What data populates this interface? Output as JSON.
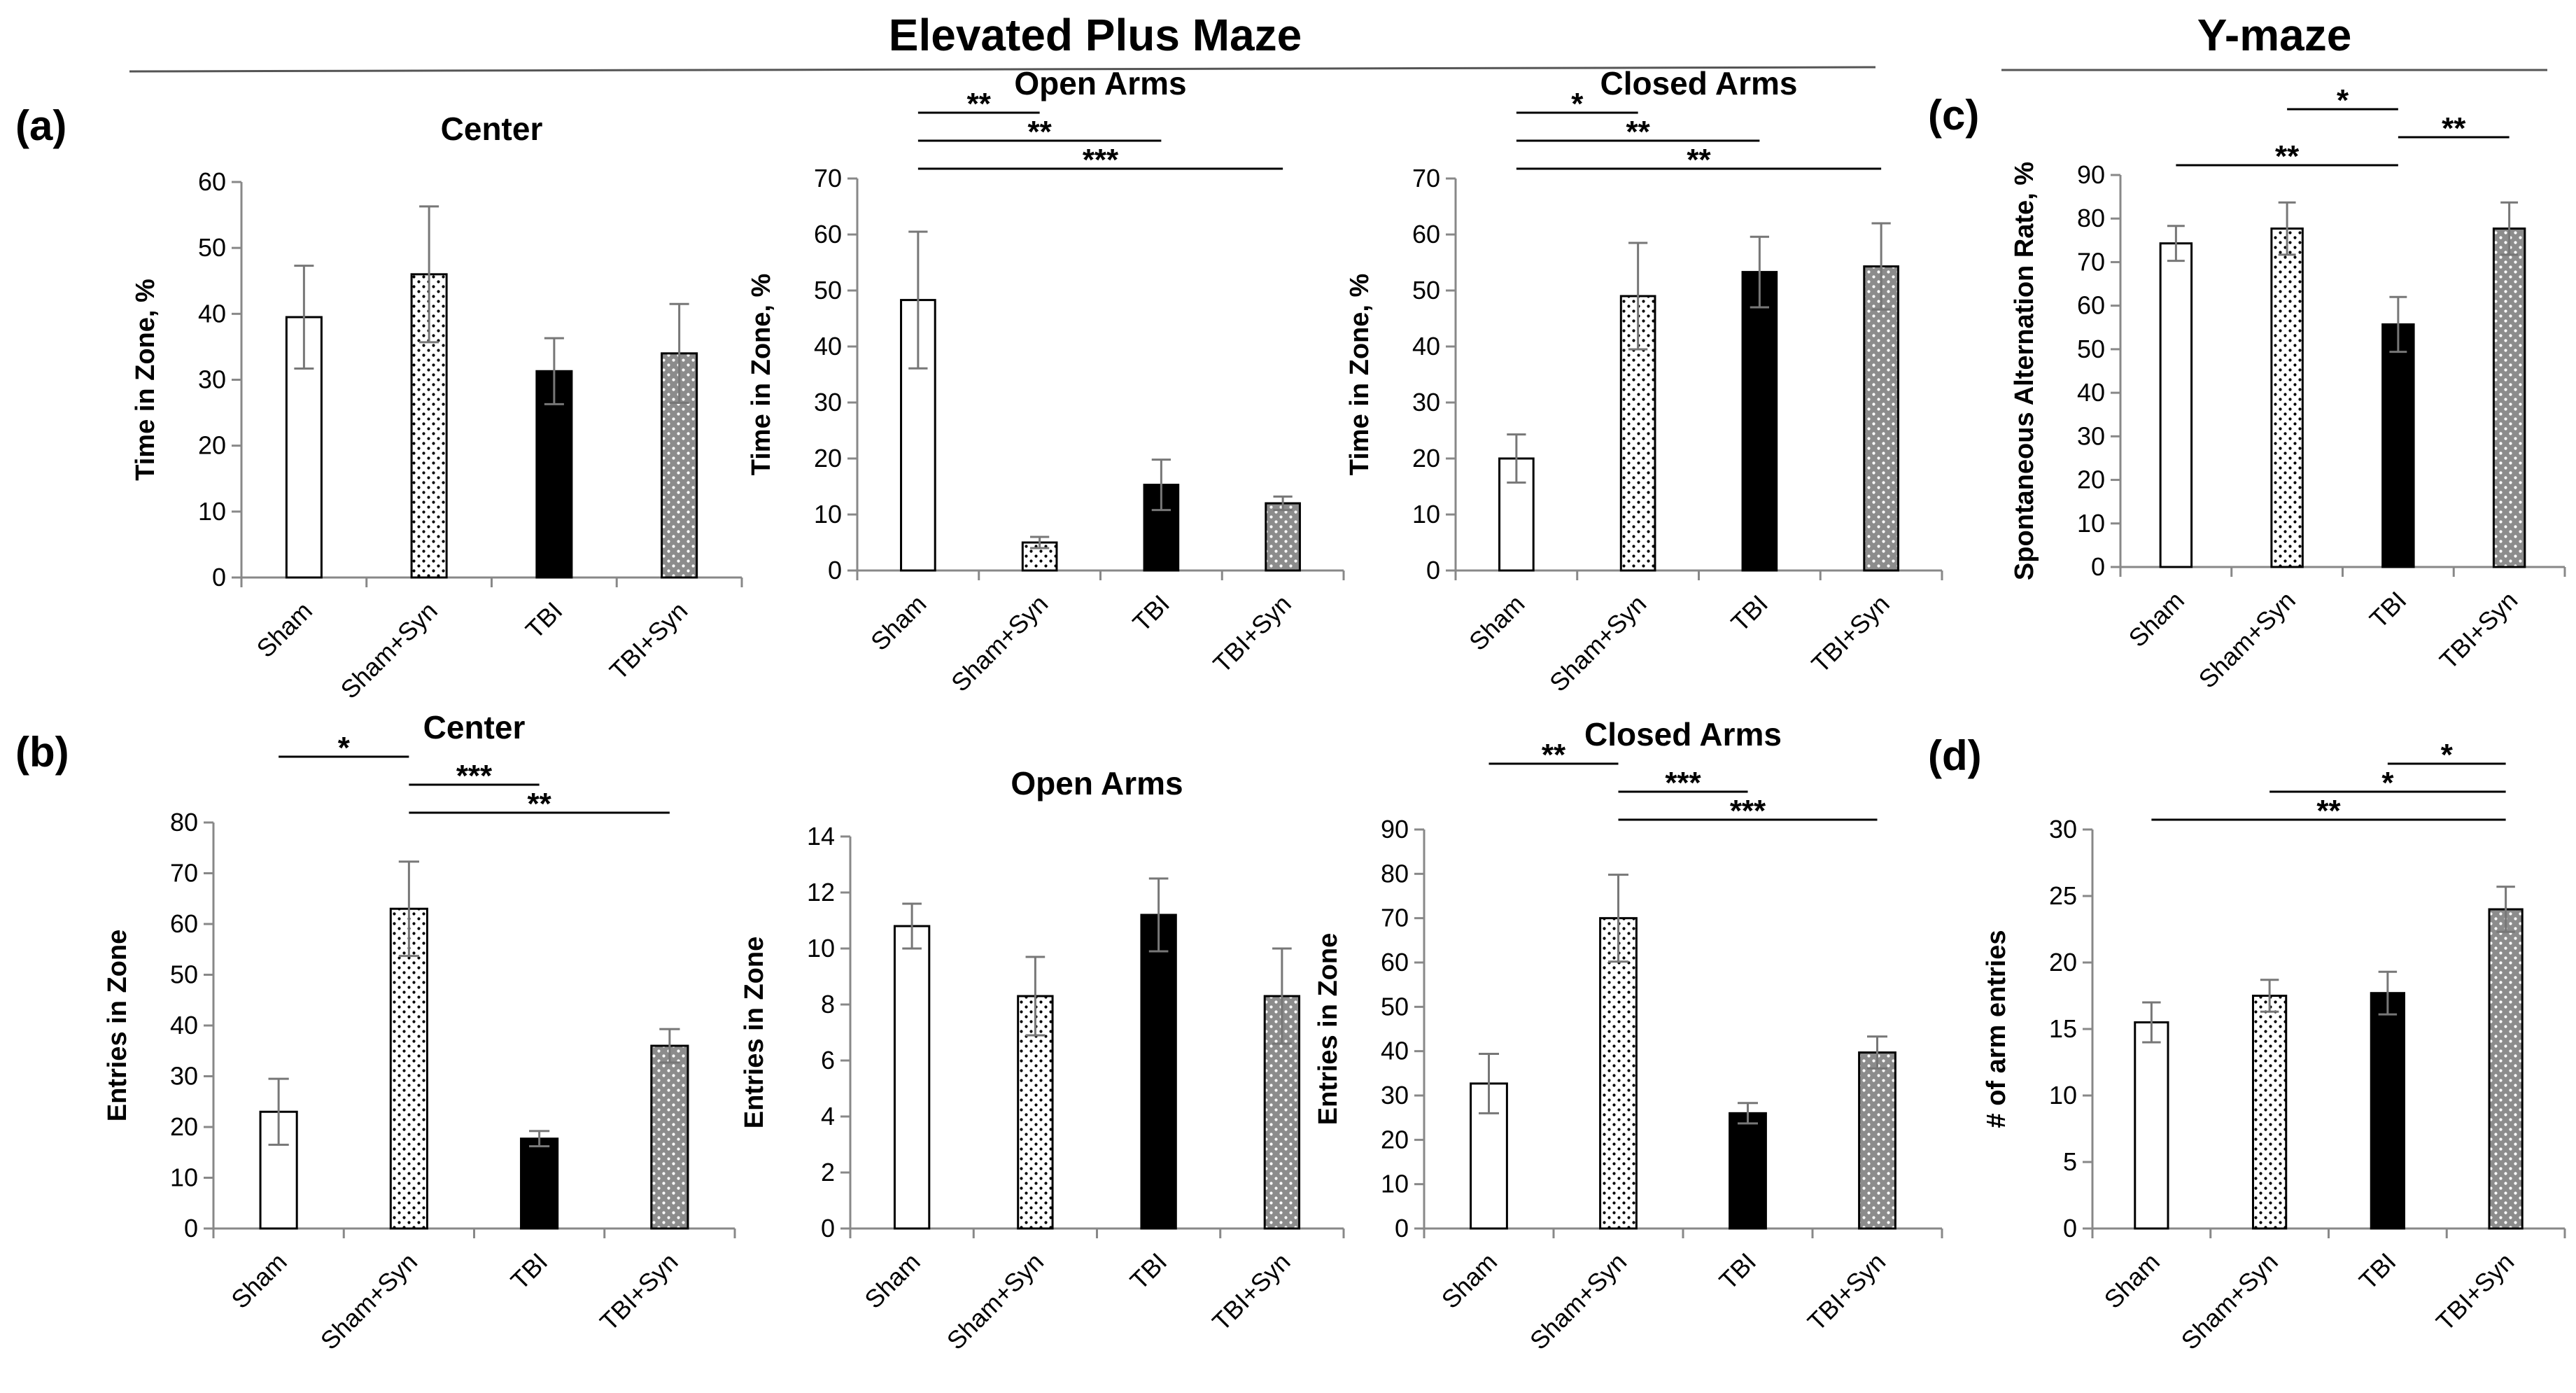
{
  "figure": {
    "sections": [
      {
        "id": "epm",
        "title": "Elevated Plus Maze"
      },
      {
        "id": "ymaze",
        "title": "Y-maze"
      }
    ],
    "panel_letters": [
      "(a)",
      "(b)",
      "(c)",
      "(d)"
    ]
  },
  "styles": {
    "Sham": {
      "fill": "#ffffff",
      "pattern": "none"
    },
    "Sham+Syn": {
      "fill": "#ffffff",
      "pattern": "dots"
    },
    "TBI": {
      "fill": "#000000",
      "pattern": "none"
    },
    "TBI+Syn": {
      "fill": "#8c8c8c",
      "pattern": "dots"
    }
  },
  "chart_data": [
    {
      "id": "a1",
      "type": "bar",
      "title": "Center",
      "xlabel": "",
      "ylabel": "Time in Zone, %",
      "categories": [
        "Sham",
        "Sham+Syn",
        "TBI",
        "TBI+Syn"
      ],
      "values": [
        39.5,
        46,
        31.3,
        34
      ],
      "errors": [
        7.8,
        10.3,
        5,
        7.5
      ],
      "ylim": [
        0,
        60
      ],
      "yticks": [
        0,
        10,
        20,
        30,
        40,
        50,
        60
      ],
      "significance": []
    },
    {
      "id": "a2",
      "type": "bar",
      "title": "Open Arms",
      "xlabel": "",
      "ylabel": "Time in Zone, %",
      "categories": [
        "Sham",
        "Sham+Syn",
        "TBI",
        "TBI+Syn"
      ],
      "values": [
        48.3,
        5,
        15.3,
        12
      ],
      "errors": [
        12.2,
        1,
        4.5,
        1.2
      ],
      "ylim": [
        0,
        70
      ],
      "yticks": [
        0,
        10,
        20,
        30,
        40,
        50,
        60,
        70
      ],
      "significance": [
        {
          "from": 0,
          "to": 1,
          "label": "**"
        },
        {
          "from": 0,
          "to": 2,
          "label": "**"
        },
        {
          "from": 0,
          "to": 3,
          "label": "***"
        }
      ]
    },
    {
      "id": "a3",
      "type": "bar",
      "title": "Closed Arms",
      "xlabel": "",
      "ylabel": "Time in Zone, %",
      "categories": [
        "Sham",
        "Sham+Syn",
        "TBI",
        "TBI+Syn"
      ],
      "values": [
        20,
        49,
        53.3,
        54.3
      ],
      "errors": [
        4.3,
        9.5,
        6.3,
        7.7
      ],
      "ylim": [
        0,
        70
      ],
      "yticks": [
        0,
        10,
        20,
        30,
        40,
        50,
        60,
        70
      ],
      "significance": [
        {
          "from": 0,
          "to": 1,
          "label": "*"
        },
        {
          "from": 0,
          "to": 2,
          "label": "**"
        },
        {
          "from": 0,
          "to": 3,
          "label": "**"
        }
      ]
    },
    {
      "id": "b1",
      "type": "bar",
      "title": "Center",
      "xlabel": "",
      "ylabel": "Entries in Zone",
      "categories": [
        "Sham",
        "Sham+Syn",
        "TBI",
        "TBI+Syn"
      ],
      "values": [
        23,
        63,
        17.7,
        36
      ],
      "errors": [
        6.5,
        9.3,
        1.5,
        3.3
      ],
      "ylim": [
        0,
        80
      ],
      "yticks": [
        0,
        10,
        20,
        30,
        40,
        50,
        60,
        70,
        80
      ],
      "significance": [
        {
          "from": 0,
          "to": 1,
          "label": "*"
        },
        {
          "from": 1,
          "to": 2,
          "label": "***"
        },
        {
          "from": 1,
          "to": 3,
          "label": "**"
        }
      ]
    },
    {
      "id": "b2",
      "type": "bar",
      "title": "Open Arms",
      "xlabel": "",
      "ylabel": "Entries in Zone",
      "categories": [
        "Sham",
        "Sham+Syn",
        "TBI",
        "TBI+Syn"
      ],
      "values": [
        10.8,
        8.3,
        11.2,
        8.3
      ],
      "errors": [
        0.8,
        1.4,
        1.3,
        1.7
      ],
      "ylim": [
        0,
        14
      ],
      "yticks": [
        0,
        2,
        4,
        6,
        8,
        10,
        12,
        14
      ],
      "significance": []
    },
    {
      "id": "b3",
      "type": "bar",
      "title": "Closed Arms",
      "xlabel": "",
      "ylabel": "Entries in Zone",
      "categories": [
        "Sham",
        "Sham+Syn",
        "TBI",
        "TBI+Syn"
      ],
      "values": [
        32.7,
        70,
        26,
        39.7
      ],
      "errors": [
        6.7,
        9.8,
        2.3,
        3.6
      ],
      "ylim": [
        0,
        90
      ],
      "yticks": [
        0,
        10,
        20,
        30,
        40,
        50,
        60,
        70,
        80,
        90
      ],
      "significance": [
        {
          "from": 0,
          "to": 1,
          "label": "**"
        },
        {
          "from": 1,
          "to": 2,
          "label": "***"
        },
        {
          "from": 1,
          "to": 3,
          "label": "***"
        }
      ]
    },
    {
      "id": "c",
      "type": "bar",
      "title": "",
      "xlabel": "",
      "ylabel": "Spontaneous Alternation Rate, %",
      "categories": [
        "Sham",
        "Sham+Syn",
        "TBI",
        "TBI+Syn"
      ],
      "values": [
        74.3,
        77.7,
        55.7,
        77.7
      ],
      "errors": [
        4,
        6,
        6.3,
        6
      ],
      "ylim": [
        0,
        90
      ],
      "yticks": [
        0,
        10,
        20,
        30,
        40,
        50,
        60,
        70,
        80,
        90
      ],
      "significance": [
        {
          "from": 0,
          "to": 2,
          "label": "**"
        },
        {
          "from": 1,
          "to": 2,
          "label": "*"
        },
        {
          "from": 2,
          "to": 3,
          "label": "**"
        }
      ]
    },
    {
      "id": "d",
      "type": "bar",
      "title": "",
      "xlabel": "",
      "ylabel": "# of arm entries",
      "categories": [
        "Sham",
        "Sham+Syn",
        "TBI",
        "TBI+Syn"
      ],
      "values": [
        15.5,
        17.5,
        17.7,
        24
      ],
      "errors": [
        1.5,
        1.2,
        1.6,
        1.7
      ],
      "ylim": [
        0,
        30
      ],
      "yticks": [
        0,
        5,
        10,
        15,
        20,
        25,
        30
      ],
      "significance": [
        {
          "from": 0,
          "to": 3,
          "label": "**"
        },
        {
          "from": 1,
          "to": 3,
          "label": "*"
        },
        {
          "from": 2,
          "to": 3,
          "label": "*"
        }
      ]
    }
  ]
}
